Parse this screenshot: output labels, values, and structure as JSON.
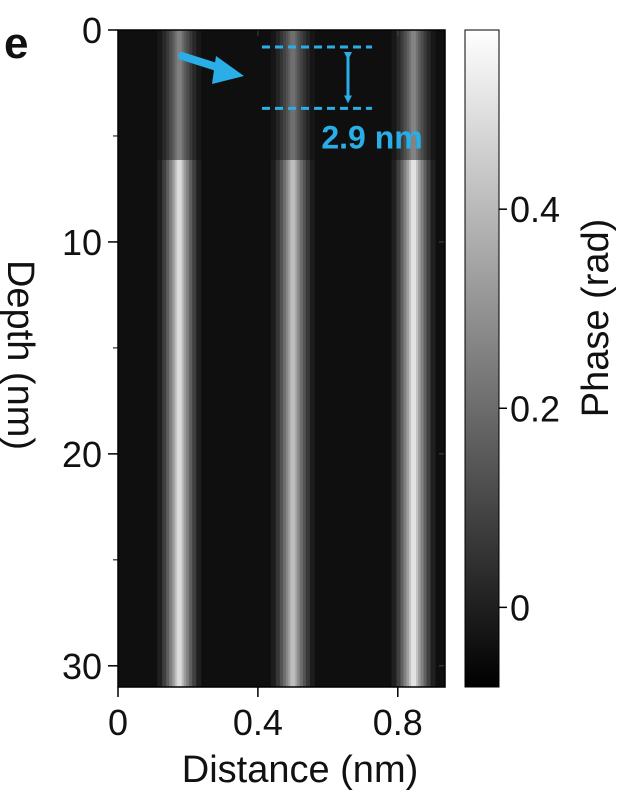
{
  "panel_label": "e",
  "chart_data": {
    "type": "heatmap",
    "xlabel": "Distance (nm)",
    "ylabel": "Depth (nm)",
    "xlim": [
      0,
      0.935
    ],
    "ylim": [
      31,
      0
    ],
    "x_ticks": [
      {
        "value": 0,
        "label": "0"
      },
      {
        "value": 0.4,
        "label": "0.4"
      },
      {
        "value": 0.8,
        "label": "0.8"
      }
    ],
    "y_ticks": [
      {
        "value": 0,
        "label": "0"
      },
      {
        "value": 10,
        "label": "10"
      },
      {
        "value": 20,
        "label": "20"
      },
      {
        "value": 30,
        "label": "30"
      }
    ],
    "colorbar": {
      "label": "Phase (rad)",
      "range": [
        -0.08,
        0.58
      ],
      "colormap": "gray",
      "ticks": [
        {
          "value": 0,
          "label": "0"
        },
        {
          "value": 0.2,
          "label": "0.2"
        },
        {
          "value": 0.4,
          "label": "0.4"
        }
      ]
    },
    "stripes": [
      {
        "center_x": 0.175,
        "peak_phase": 0.52
      },
      {
        "center_x": 0.5,
        "peak_phase": 0.44
      },
      {
        "center_x": 0.845,
        "peak_phase": 0.54
      }
    ],
    "annotation": {
      "text": "2.9 nm",
      "depth_from": 0.8,
      "depth_to": 3.7,
      "color": "#2aaee8"
    }
  }
}
